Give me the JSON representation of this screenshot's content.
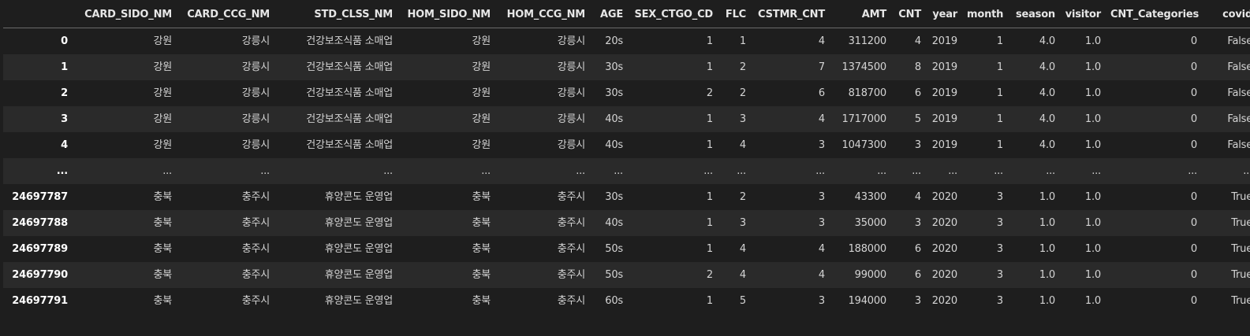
{
  "columns": [
    "",
    "CARD_SIDO_NM",
    "CARD_CCG_NM",
    "STD_CLSS_NM",
    "HOM_SIDO_NM",
    "HOM_CCG_NM",
    "AGE",
    "SEX_CTGO_CD",
    "FLC",
    "CSTMR_CNT",
    "AMT",
    "CNT",
    "year",
    "month",
    "season",
    "visitor",
    "CNT_Categories",
    "covid"
  ],
  "rows": [
    [
      "0",
      "강원",
      "강릉시",
      "건강보조식품 소매업",
      "강원",
      "강릉시",
      "20s",
      "1",
      "1",
      "4",
      "311200",
      "4",
      "2019",
      "1",
      "4.0",
      "1.0",
      "0",
      "False"
    ],
    [
      "1",
      "강원",
      "강릉시",
      "건강보조식품 소매업",
      "강원",
      "강릉시",
      "30s",
      "1",
      "2",
      "7",
      "1374500",
      "8",
      "2019",
      "1",
      "4.0",
      "1.0",
      "0",
      "False"
    ],
    [
      "2",
      "강원",
      "강릉시",
      "건강보조식품 소매업",
      "강원",
      "강릉시",
      "30s",
      "2",
      "2",
      "6",
      "818700",
      "6",
      "2019",
      "1",
      "4.0",
      "1.0",
      "0",
      "False"
    ],
    [
      "3",
      "강원",
      "강릉시",
      "건강보조식품 소매업",
      "강원",
      "강릉시",
      "40s",
      "1",
      "3",
      "4",
      "1717000",
      "5",
      "2019",
      "1",
      "4.0",
      "1.0",
      "0",
      "False"
    ],
    [
      "4",
      "강원",
      "강릉시",
      "건강보조식품 소매업",
      "강원",
      "강릉시",
      "40s",
      "1",
      "4",
      "3",
      "1047300",
      "3",
      "2019",
      "1",
      "4.0",
      "1.0",
      "0",
      "False"
    ],
    [
      "...",
      "...",
      "...",
      "...",
      "...",
      "...",
      "...",
      "...",
      "...",
      "...",
      "...",
      "...",
      "...",
      "...",
      "...",
      "...",
      "...",
      "..."
    ],
    [
      "24697787",
      "충북",
      "충주시",
      "휴양콘도 운영업",
      "충북",
      "충주시",
      "30s",
      "1",
      "2",
      "3",
      "43300",
      "4",
      "2020",
      "3",
      "1.0",
      "1.0",
      "0",
      "True"
    ],
    [
      "24697788",
      "충북",
      "충주시",
      "휴양콘도 운영업",
      "충북",
      "충주시",
      "40s",
      "1",
      "3",
      "3",
      "35000",
      "3",
      "2020",
      "3",
      "1.0",
      "1.0",
      "0",
      "True"
    ],
    [
      "24697789",
      "충북",
      "충주시",
      "휴양콘도 운영업",
      "충북",
      "충주시",
      "50s",
      "1",
      "4",
      "4",
      "188000",
      "6",
      "2020",
      "3",
      "1.0",
      "1.0",
      "0",
      "True"
    ],
    [
      "24697790",
      "충북",
      "충주시",
      "휴양콘도 운영업",
      "충북",
      "충주시",
      "50s",
      "2",
      "4",
      "4",
      "99000",
      "6",
      "2020",
      "3",
      "1.0",
      "1.0",
      "0",
      "True"
    ],
    [
      "24697791",
      "충북",
      "충주시",
      "휴양콘도 운영업",
      "충북",
      "충주시",
      "60s",
      "1",
      "5",
      "3",
      "194000",
      "3",
      "2020",
      "3",
      "1.0",
      "1.0",
      "0",
      "True"
    ]
  ]
}
